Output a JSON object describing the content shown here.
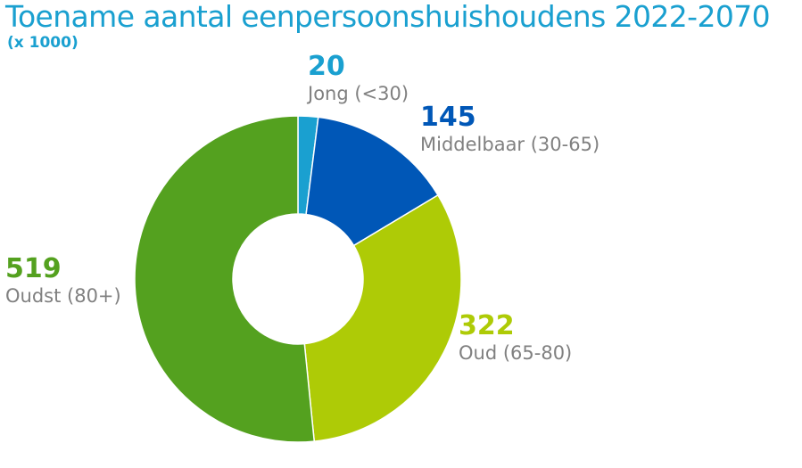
{
  "title": "Toename aantal eenpersoonshuishoudens 2022-2070",
  "subtitle": "(x 1000)",
  "chart_data": {
    "type": "pie",
    "title": "Toename aantal eenpersoonshuishoudens 2022-2070",
    "subtitle": "(x 1000)",
    "donut": true,
    "slices": [
      {
        "label": "Jong (<30)",
        "value": 20,
        "value_label": "20",
        "color": "#1aa0d0"
      },
      {
        "label": "Middelbaar (30-65)",
        "value": 145,
        "value_label": "145",
        "color": "#0057b7"
      },
      {
        "label": "Oud (65-80)",
        "value": 322,
        "value_label": "322",
        "color": "#aecb06"
      },
      {
        "label": "Oudst (80+)",
        "value": 519,
        "value_label": "519",
        "color": "#54a11f"
      }
    ]
  }
}
